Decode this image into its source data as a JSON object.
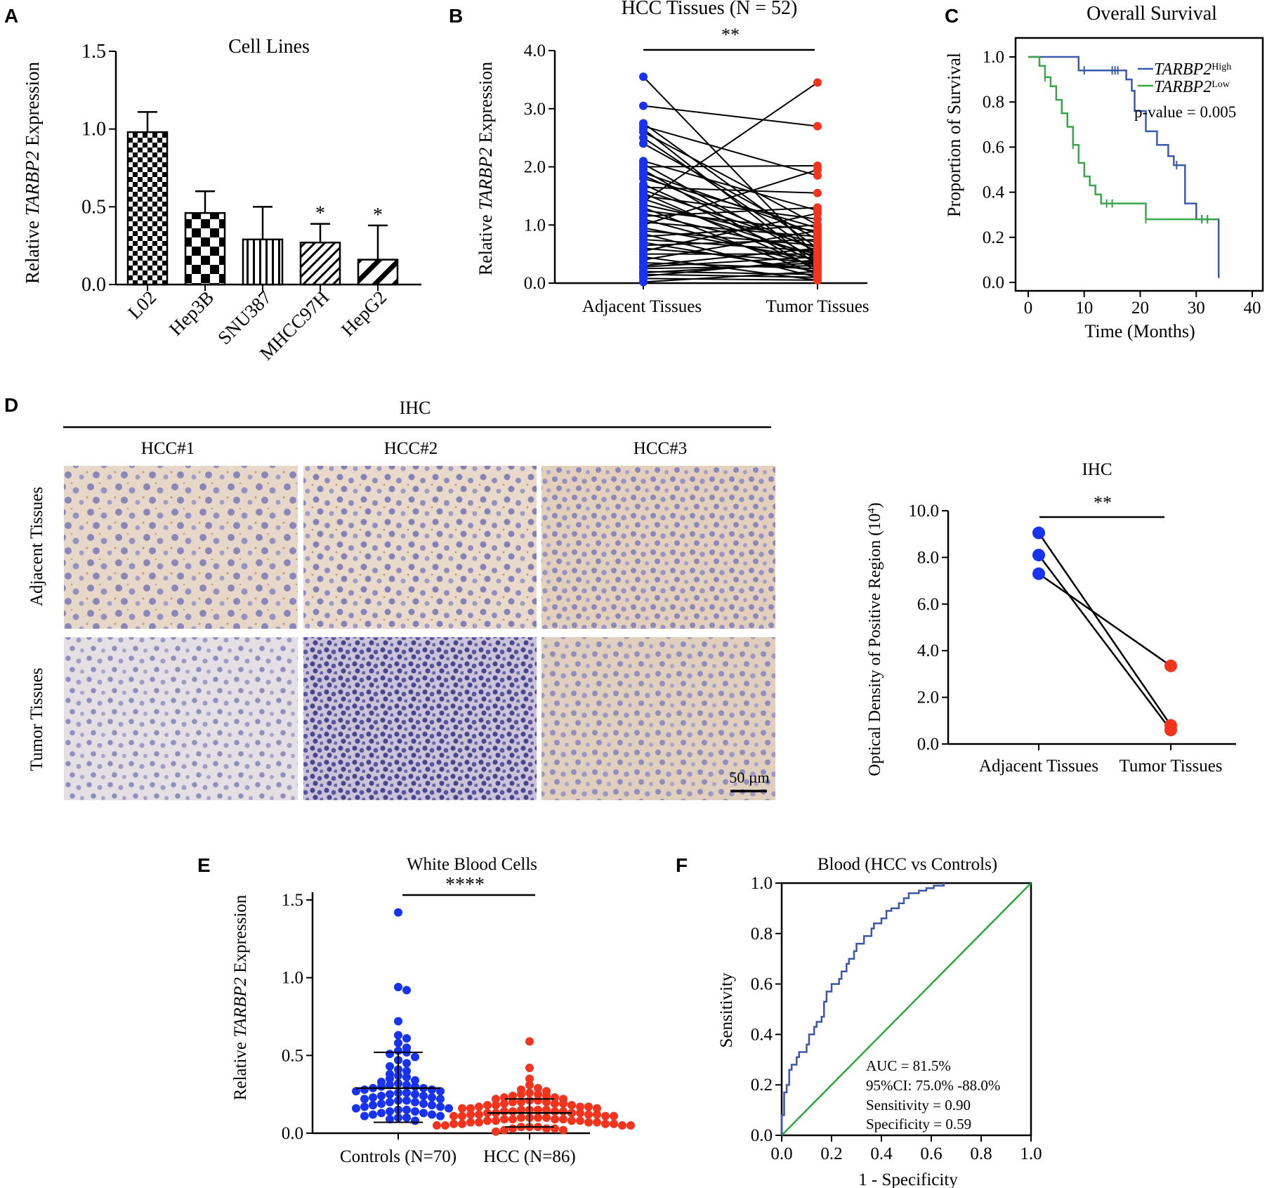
{
  "panel_letters": [
    "A",
    "B",
    "C",
    "D",
    "E",
    "F"
  ],
  "colors": {
    "blue_dots": "#1733f0",
    "red_dots": "#f2341f",
    "km_high": "#3a5bab",
    "km_low": "#3aa64a",
    "roc_curve": "#3c57a8",
    "roc_diagonal": "#2aa83a"
  },
  "chart_data": [
    {
      "panel": "A",
      "type": "bar",
      "title": "Cell Lines",
      "ylabel_prefix": "Relative ",
      "ylabel_gene": "TARBP2",
      "ylabel_suffix": " Expression",
      "ylim": [
        0,
        1.5
      ],
      "yticks": [
        "0.0",
        "0.5",
        "1.0",
        "1.5"
      ],
      "categories": [
        "L02",
        "Hep3B",
        "SNU387",
        "MHCC97H",
        "HepG2"
      ],
      "values": [
        0.98,
        0.46,
        0.29,
        0.27,
        0.16
      ],
      "errors": [
        0.13,
        0.14,
        0.21,
        0.12,
        0.22
      ],
      "significance": [
        "",
        "",
        "",
        "*",
        "*"
      ],
      "patterns": [
        "checker-fine",
        "checker-coarse",
        "vertical-stripes",
        "diagonal-narrow",
        "diagonal-wide"
      ]
    },
    {
      "panel": "B",
      "type": "paired-line",
      "title": "HCC Tissues (N = 52)",
      "ylabel_prefix": "Relative ",
      "ylabel_gene": "TARBP2",
      "ylabel_suffix": " Expression",
      "ylim": [
        0,
        4
      ],
      "yticks": [
        "0.0",
        "1.0",
        "2.0",
        "3.0",
        "4.0"
      ],
      "categories": [
        "Adjacent  Tissues",
        "Tumor Tissues"
      ],
      "significance": "**",
      "adjacent": [
        3.55,
        3.05,
        2.75,
        2.7,
        2.65,
        2.6,
        2.5,
        2.4,
        2.1,
        2.05,
        2.0,
        1.95,
        1.9,
        1.85,
        1.8,
        1.7,
        1.65,
        1.6,
        1.55,
        1.5,
        1.45,
        1.4,
        1.35,
        1.3,
        1.25,
        1.2,
        1.15,
        1.1,
        1.05,
        1.0,
        0.95,
        0.9,
        0.85,
        0.8,
        0.75,
        0.7,
        0.65,
        0.6,
        0.55,
        0.5,
        0.45,
        0.4,
        0.35,
        0.3,
        0.28,
        0.25,
        0.2,
        0.18,
        0.15,
        0.12,
        0.08,
        0.02
      ],
      "tumor": [
        0.45,
        2.7,
        0.6,
        1.85,
        0.3,
        1.0,
        0.5,
        0.75,
        1.25,
        0.4,
        2.02,
        0.2,
        0.85,
        0.55,
        0.95,
        0.35,
        1.55,
        0.6,
        0.25,
        1.1,
        0.45,
        3.45,
        0.7,
        0.15,
        0.9,
        0.5,
        1.3,
        0.3,
        0.8,
        1.95,
        0.4,
        0.65,
        0.1,
        1.0,
        0.55,
        0.2,
        0.75,
        0.35,
        1.2,
        0.5,
        0.05,
        0.9,
        0.25,
        0.6,
        0.45,
        0.3,
        0.15,
        0.35,
        0.1,
        0.4,
        0.05,
        0.2
      ]
    },
    {
      "panel": "C",
      "type": "kaplan-meier",
      "title": "Overall Survival",
      "xlabel": "Time (Months)",
      "ylabel": "Proportion of Survival",
      "xlim": [
        0,
        40
      ],
      "ylim": [
        0,
        1
      ],
      "xticks": [
        "0",
        "10",
        "20",
        "30",
        "40"
      ],
      "yticks": [
        "0.0",
        "0.2",
        "0.4",
        "0.6",
        "0.8",
        "1.0"
      ],
      "pvalue_text": "p-value = 0.005",
      "series": [
        {
          "name_gene": "TARBP2",
          "name_sup": "High",
          "color": "#3a5bab",
          "steps": [
            [
              0,
              1.0
            ],
            [
              9,
              1.0
            ],
            [
              9,
              0.94
            ],
            [
              17.5,
              0.94
            ],
            [
              17.5,
              0.9
            ],
            [
              18.5,
              0.9
            ],
            [
              18.5,
              0.85
            ],
            [
              19,
              0.85
            ],
            [
              19,
              0.76
            ],
            [
              21,
              0.76
            ],
            [
              21,
              0.67
            ],
            [
              23,
              0.67
            ],
            [
              23,
              0.61
            ],
            [
              25,
              0.61
            ],
            [
              25,
              0.56
            ],
            [
              26,
              0.56
            ],
            [
              26,
              0.52
            ],
            [
              28,
              0.52
            ],
            [
              28,
              0.35
            ],
            [
              30,
              0.35
            ],
            [
              30,
              0.28
            ],
            [
              34,
              0.28
            ],
            [
              34,
              0.02
            ]
          ],
          "censors": [
            [
              10,
              0.94
            ],
            [
              15,
              0.94
            ],
            [
              15.5,
              0.94
            ],
            [
              16,
              0.94
            ],
            [
              26.5,
              0.52
            ],
            [
              31,
              0.28
            ],
            [
              32,
              0.28
            ]
          ]
        },
        {
          "name_gene": "TARBP2",
          "name_sup": "Low",
          "color": "#3aa64a",
          "steps": [
            [
              0,
              1.0
            ],
            [
              2,
              1.0
            ],
            [
              2,
              0.96
            ],
            [
              3,
              0.96
            ],
            [
              3,
              0.91
            ],
            [
              4,
              0.91
            ],
            [
              4,
              0.87
            ],
            [
              5,
              0.87
            ],
            [
              5,
              0.81
            ],
            [
              6,
              0.81
            ],
            [
              6,
              0.75
            ],
            [
              7,
              0.75
            ],
            [
              7,
              0.69
            ],
            [
              8,
              0.69
            ],
            [
              8,
              0.61
            ],
            [
              9,
              0.61
            ],
            [
              9,
              0.53
            ],
            [
              10,
              0.53
            ],
            [
              10,
              0.47
            ],
            [
              11,
              0.47
            ],
            [
              11,
              0.43
            ],
            [
              12,
              0.43
            ],
            [
              12,
              0.39
            ],
            [
              13,
              0.39
            ],
            [
              13,
              0.35
            ],
            [
              21,
              0.35
            ],
            [
              21,
              0.28
            ],
            [
              34,
              0.28
            ]
          ],
          "censors": [
            [
              3,
              0.91
            ],
            [
              8,
              0.61
            ],
            [
              14,
              0.35
            ],
            [
              15,
              0.35
            ],
            [
              21,
              0.28
            ],
            [
              31,
              0.28
            ],
            [
              32,
              0.28
            ]
          ]
        }
      ]
    },
    {
      "panel": "D",
      "type": "paired-dot",
      "title": "IHC",
      "ylabel": "Optical Density of Positive Region  (10",
      "ylabel_sup": "4",
      "ylabel_close": ")",
      "ylim": [
        0,
        10
      ],
      "yticks": [
        "0.0",
        "2.0",
        "4.0",
        "6.0",
        "8.0",
        "10.0"
      ],
      "categories": [
        "Adjacent Tissues",
        "Tumor Tissues"
      ],
      "significance": "**",
      "adjacent": [
        9.05,
        8.1,
        7.3
      ],
      "tumor": [
        0.8,
        0.6,
        3.35
      ]
    },
    {
      "panel": "E",
      "type": "scatter",
      "title": "White Blood Cells",
      "ylabel_prefix": "Relative ",
      "ylabel_gene": "TARBP2",
      "ylabel_suffix": " Expression",
      "ylim": [
        0,
        1.5
      ],
      "yticks": [
        "0.0",
        "0.5",
        "1.0",
        "1.5"
      ],
      "categories": [
        "Controls (N=70)",
        "HCC (N=86)"
      ],
      "significance": "****",
      "series": [
        {
          "name": "Controls (N=70)",
          "n": 70,
          "mean": 0.29,
          "sd_low": 0.07,
          "sd_high": 0.52,
          "values": [
            1.42,
            0.94,
            0.92,
            0.72,
            0.63,
            0.61,
            0.58,
            0.55,
            0.53,
            0.52,
            0.51,
            0.49,
            0.47,
            0.45,
            0.43,
            0.41,
            0.4,
            0.38,
            0.37,
            0.36,
            0.35,
            0.34,
            0.33,
            0.32,
            0.31,
            0.31,
            0.3,
            0.3,
            0.29,
            0.29,
            0.28,
            0.28,
            0.27,
            0.27,
            0.26,
            0.26,
            0.25,
            0.25,
            0.24,
            0.24,
            0.23,
            0.23,
            0.22,
            0.22,
            0.21,
            0.21,
            0.2,
            0.2,
            0.19,
            0.19,
            0.18,
            0.18,
            0.17,
            0.17,
            0.16,
            0.16,
            0.15,
            0.15,
            0.14,
            0.14,
            0.13,
            0.13,
            0.12,
            0.12,
            0.11,
            0.11,
            0.1,
            0.1,
            0.09,
            0.08
          ]
        },
        {
          "name": "HCC (N=86)",
          "n": 86,
          "mean": 0.13,
          "sd_low": 0.04,
          "sd_high": 0.22,
          "values": [
            0.59,
            0.42,
            0.35,
            0.31,
            0.29,
            0.28,
            0.27,
            0.26,
            0.25,
            0.25,
            0.24,
            0.24,
            0.23,
            0.23,
            0.22,
            0.22,
            0.21,
            0.21,
            0.2,
            0.2,
            0.2,
            0.19,
            0.19,
            0.19,
            0.18,
            0.18,
            0.18,
            0.17,
            0.17,
            0.17,
            0.16,
            0.16,
            0.16,
            0.15,
            0.15,
            0.15,
            0.15,
            0.14,
            0.14,
            0.14,
            0.14,
            0.13,
            0.13,
            0.13,
            0.13,
            0.12,
            0.12,
            0.12,
            0.12,
            0.11,
            0.11,
            0.11,
            0.11,
            0.1,
            0.1,
            0.1,
            0.1,
            0.09,
            0.09,
            0.09,
            0.09,
            0.08,
            0.08,
            0.08,
            0.08,
            0.07,
            0.07,
            0.07,
            0.07,
            0.06,
            0.06,
            0.06,
            0.06,
            0.05,
            0.05,
            0.05,
            0.05,
            0.04,
            0.04,
            0.04,
            0.03,
            0.03,
            0.03,
            0.02,
            0.02,
            0.01
          ]
        }
      ]
    },
    {
      "panel": "F",
      "type": "roc",
      "title": "Blood (HCC vs Controls)",
      "xlabel": "1 - Specificity",
      "ylabel": "Sensitivity",
      "xlim": [
        0,
        1
      ],
      "ylim": [
        0,
        1
      ],
      "xticks": [
        "0.0",
        "0.2",
        "0.4",
        "0.6",
        "0.8",
        "1.0"
      ],
      "yticks": [
        "0.0",
        "0.2",
        "0.4",
        "0.6",
        "0.8",
        "1.0"
      ],
      "annotations": [
        "AUC = 81.5%",
        "95%CI: 75.0% -88.0%",
        "Sensitivity = 0.90",
        "Specificity = 0.59"
      ],
      "roc": [
        [
          0,
          0
        ],
        [
          0,
          0.08
        ],
        [
          0.01,
          0.08
        ],
        [
          0.01,
          0.17
        ],
        [
          0.02,
          0.17
        ],
        [
          0.02,
          0.2
        ],
        [
          0.03,
          0.2
        ],
        [
          0.03,
          0.26
        ],
        [
          0.04,
          0.26
        ],
        [
          0.04,
          0.28
        ],
        [
          0.06,
          0.28
        ],
        [
          0.06,
          0.31
        ],
        [
          0.07,
          0.31
        ],
        [
          0.07,
          0.33
        ],
        [
          0.1,
          0.33
        ],
        [
          0.1,
          0.36
        ],
        [
          0.11,
          0.36
        ],
        [
          0.11,
          0.4
        ],
        [
          0.13,
          0.4
        ],
        [
          0.13,
          0.43
        ],
        [
          0.14,
          0.43
        ],
        [
          0.14,
          0.45
        ],
        [
          0.16,
          0.45
        ],
        [
          0.16,
          0.47
        ],
        [
          0.17,
          0.47
        ],
        [
          0.17,
          0.53
        ],
        [
          0.18,
          0.53
        ],
        [
          0.18,
          0.57
        ],
        [
          0.2,
          0.57
        ],
        [
          0.2,
          0.6
        ],
        [
          0.23,
          0.6
        ],
        [
          0.23,
          0.62
        ],
        [
          0.24,
          0.62
        ],
        [
          0.24,
          0.65
        ],
        [
          0.26,
          0.65
        ],
        [
          0.26,
          0.68
        ],
        [
          0.27,
          0.68
        ],
        [
          0.27,
          0.7
        ],
        [
          0.29,
          0.7
        ],
        [
          0.29,
          0.73
        ],
        [
          0.3,
          0.73
        ],
        [
          0.3,
          0.76
        ],
        [
          0.33,
          0.76
        ],
        [
          0.33,
          0.79
        ],
        [
          0.36,
          0.79
        ],
        [
          0.36,
          0.82
        ],
        [
          0.37,
          0.82
        ],
        [
          0.37,
          0.84
        ],
        [
          0.4,
          0.84
        ],
        [
          0.4,
          0.86
        ],
        [
          0.42,
          0.86
        ],
        [
          0.42,
          0.89
        ],
        [
          0.44,
          0.89
        ],
        [
          0.44,
          0.9
        ],
        [
          0.47,
          0.9
        ],
        [
          0.47,
          0.92
        ],
        [
          0.49,
          0.92
        ],
        [
          0.49,
          0.94
        ],
        [
          0.51,
          0.94
        ],
        [
          0.51,
          0.96
        ],
        [
          0.55,
          0.96
        ],
        [
          0.55,
          0.97
        ],
        [
          0.58,
          0.97
        ],
        [
          0.58,
          0.98
        ],
        [
          0.61,
          0.98
        ],
        [
          0.61,
          0.99
        ],
        [
          0.65,
          0.99
        ],
        [
          0.65,
          1.0
        ]
      ]
    }
  ],
  "ihc_panel": {
    "header": "IHC",
    "columns": [
      "HCC#1",
      "HCC#2",
      "HCC#3"
    ],
    "rows": [
      "Adjacent Tissues",
      "Tumor Tissues"
    ],
    "scale_bar": "50 µm"
  }
}
